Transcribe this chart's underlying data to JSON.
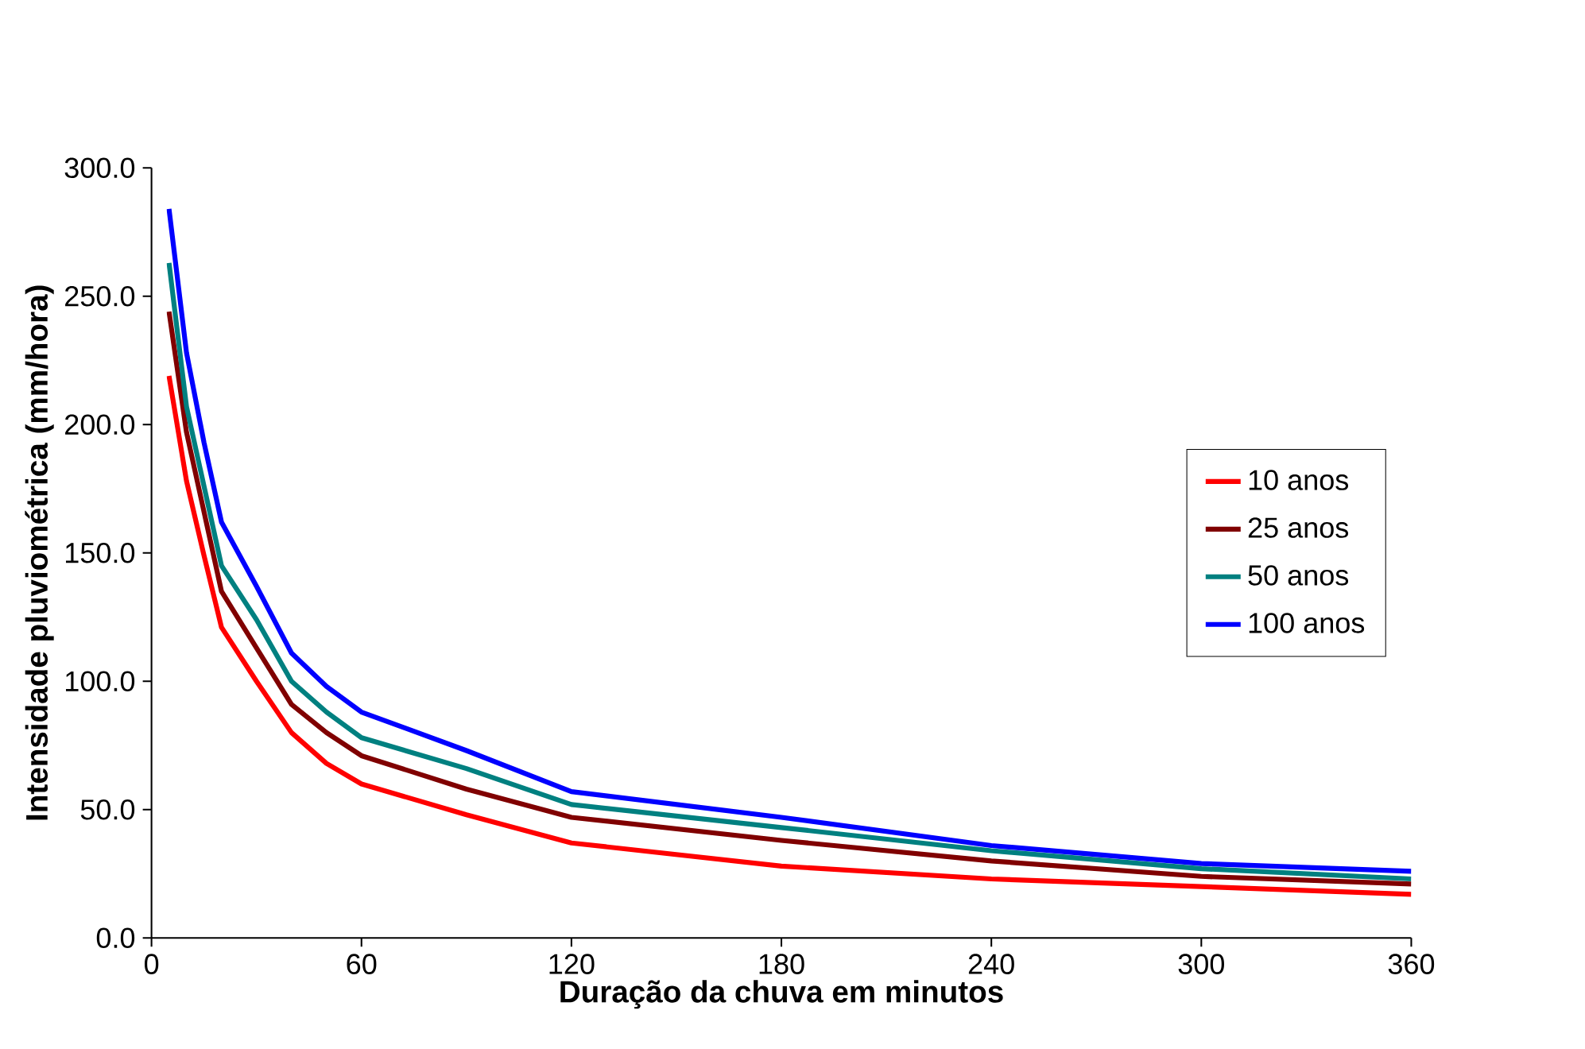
{
  "chart_data": {
    "type": "line",
    "xlabel": "Duração da chuva em minutos",
    "ylabel": "Intensidade pluviométrica (mm/hora)",
    "x": [
      5,
      10,
      15,
      20,
      30,
      40,
      50,
      60,
      90,
      120,
      180,
      240,
      300,
      360
    ],
    "series": [
      {
        "name": "10 anos",
        "color": "#ff0000",
        "values": [
          219,
          178,
          149,
          121,
          100,
          80,
          68,
          60,
          48,
          37,
          28,
          23,
          20,
          17
        ]
      },
      {
        "name": "25 anos",
        "color": "#800000",
        "values": [
          244,
          197,
          166,
          135,
          113,
          91,
          80,
          71,
          58,
          47,
          38,
          30,
          24,
          21
        ]
      },
      {
        "name": "50 anos",
        "color": "#008080",
        "values": [
          263,
          207,
          176,
          145,
          124,
          100,
          88,
          78,
          66,
          52,
          43,
          34,
          27,
          23
        ]
      },
      {
        "name": "100 anos",
        "color": "#0000ff",
        "values": [
          284,
          228,
          193,
          162,
          137,
          111,
          98,
          88,
          73,
          57,
          47,
          36,
          29,
          26
        ]
      }
    ],
    "xlim": [
      0,
      360
    ],
    "ylim": [
      0,
      300
    ],
    "xticks": [
      0,
      60,
      120,
      180,
      240,
      300,
      360
    ],
    "yticks": [
      {
        "value": 0,
        "label": "0.0"
      },
      {
        "value": 50,
        "label": "50.0"
      },
      {
        "value": 100,
        "label": "100.0"
      },
      {
        "value": 150,
        "label": "150.0"
      },
      {
        "value": 200,
        "label": "200.0"
      },
      {
        "value": 250,
        "label": "250.0"
      },
      {
        "value": 300,
        "label": "300.0"
      }
    ],
    "legend": "right",
    "grid": false,
    "marker": "none",
    "line_style": "solid"
  }
}
